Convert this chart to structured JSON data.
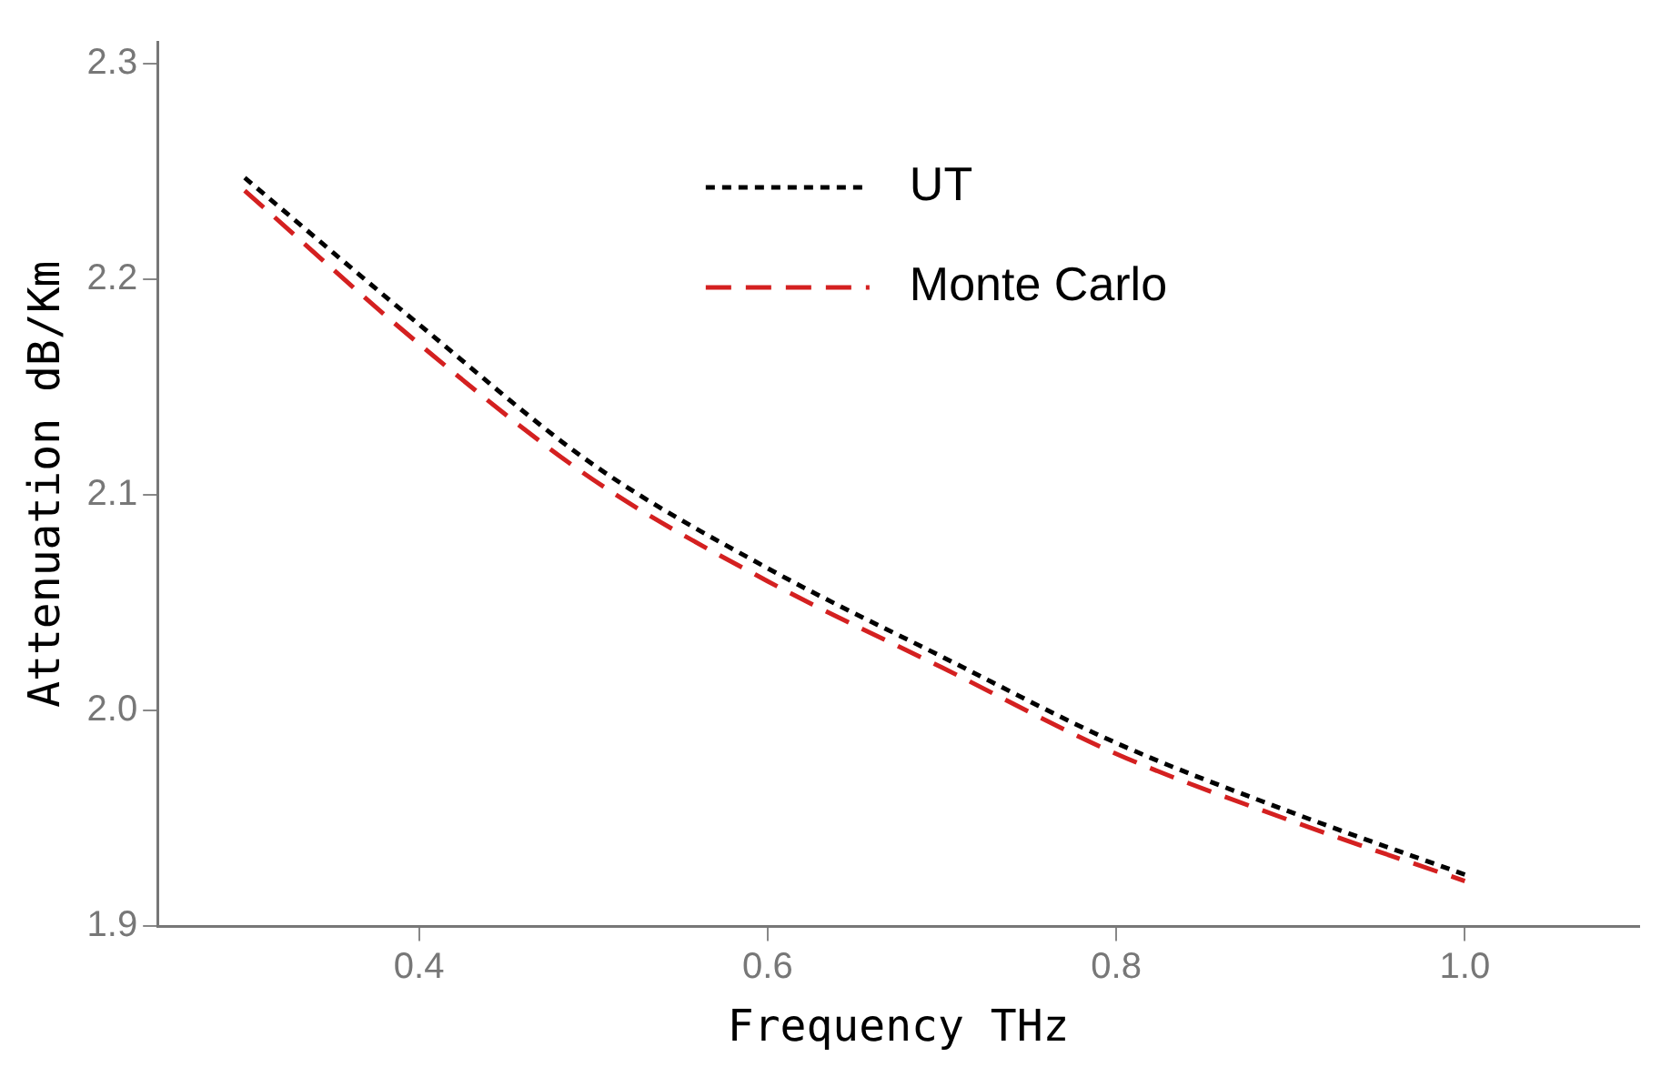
{
  "chart_data": {
    "type": "line",
    "xlabel": "Frequency THz",
    "ylabel": "Attenuation dB/Km",
    "x": [
      0.3,
      0.4,
      0.5,
      0.6,
      0.7,
      0.8,
      0.9,
      1.0
    ],
    "series": [
      {
        "name": "UT",
        "color": "#000000",
        "line_style": "dotted",
        "values": [
          2.247,
          2.179,
          2.114,
          2.066,
          2.025,
          1.985,
          1.953,
          1.924
        ]
      },
      {
        "name": "Monte Carlo",
        "color": "#d42020",
        "line_style": "dashed",
        "values": [
          2.241,
          2.17,
          2.107,
          2.06,
          2.02,
          1.98,
          1.949,
          1.921
        ]
      }
    ],
    "xlim": [
      0.25,
      1.1
    ],
    "xticks": [
      0.4,
      0.6,
      0.8,
      {
        "value": 1,
        "label": "1.0"
      }
    ],
    "ylim": [
      1.9,
      2.31
    ],
    "yticks": [
      1.9,
      {
        "value": 2,
        "label": "2.0"
      },
      2.1,
      2.2,
      2.3
    ],
    "grid": false,
    "legend": "top",
    "marker": "none"
  }
}
